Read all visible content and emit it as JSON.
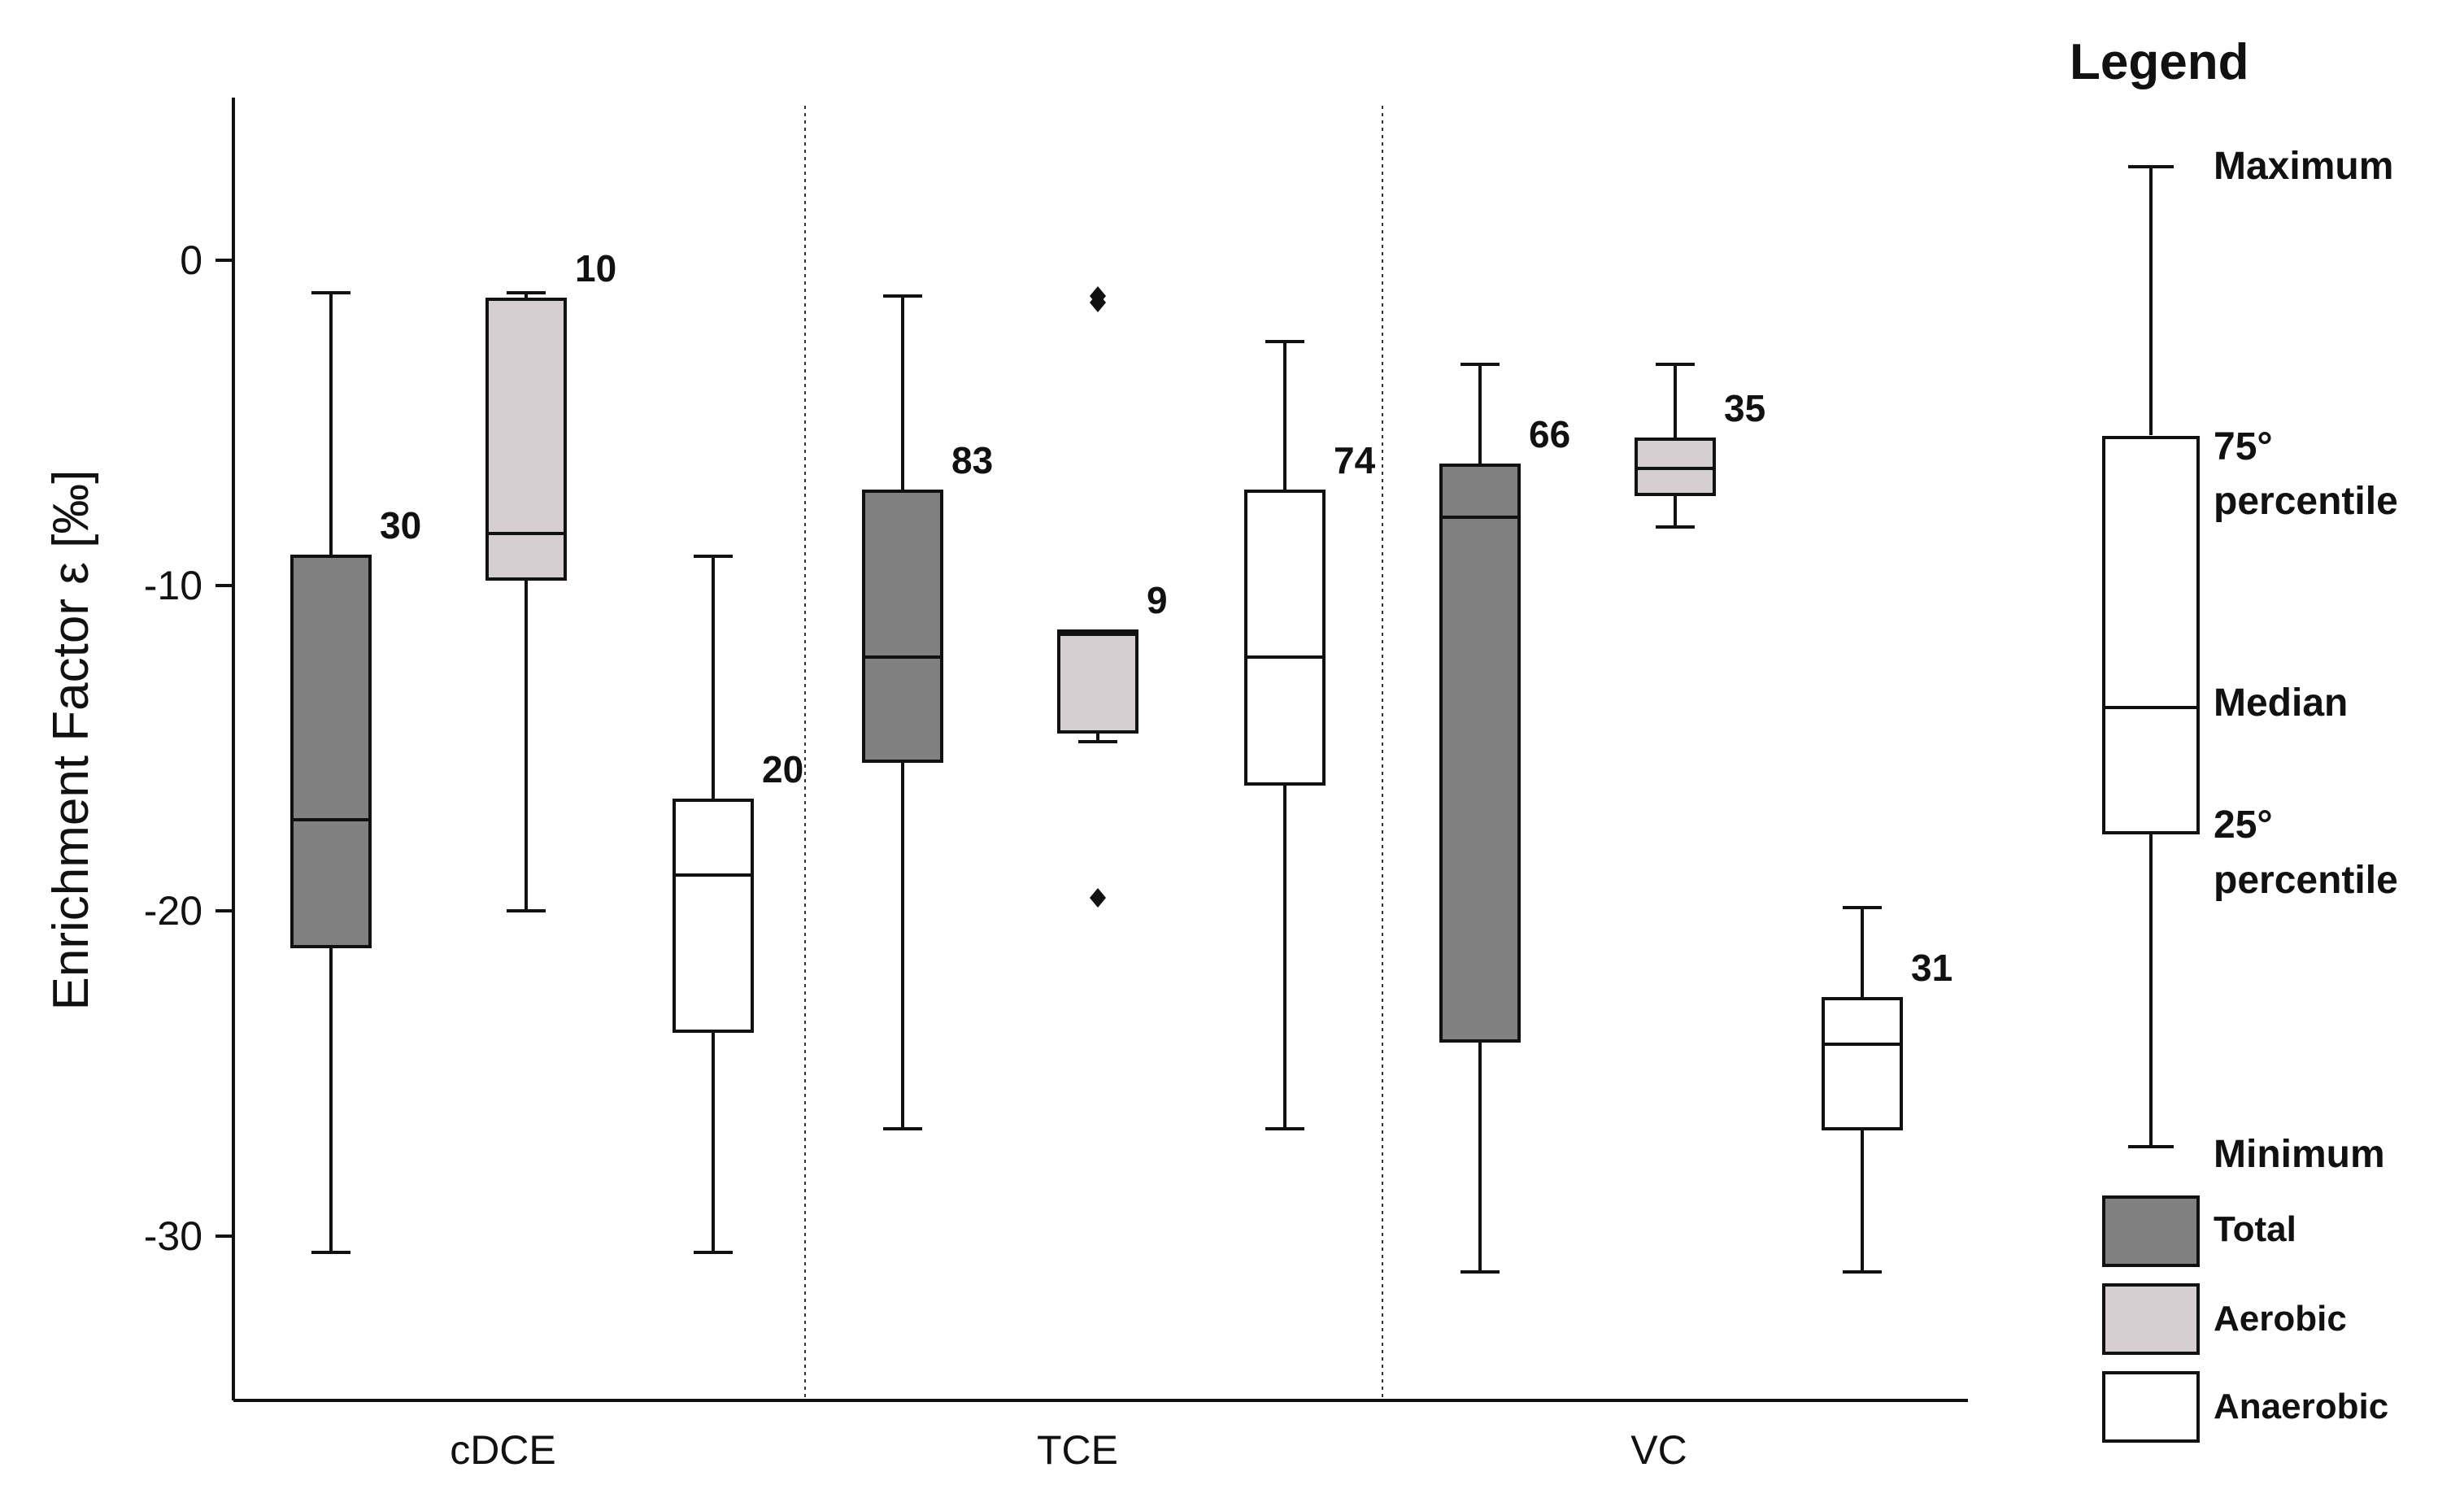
{
  "chart_data": {
    "type": "boxplot",
    "ylabel": "Enrichment Factor ε [‰]",
    "ylim": [
      -35,
      5
    ],
    "yticks": [
      0,
      -10,
      -20,
      -30
    ],
    "ytick_labels": [
      "0",
      "-10",
      "-20",
      "-30"
    ],
    "categories": [
      "cDCE",
      "TCE",
      "VC"
    ],
    "series_colors": {
      "Total": "#808080",
      "Aerobic": "#d6cfd1",
      "Anaerobic": "#ffffff"
    },
    "boxes": [
      {
        "category": "cDCE",
        "series": "Total",
        "min": -30.5,
        "q1": -21.1,
        "median": -17.2,
        "q3": -9.1,
        "max": -1.0,
        "n": "30",
        "outliers": []
      },
      {
        "category": "cDCE",
        "series": "Aerobic",
        "min": -20.0,
        "q1": -9.8,
        "median": -8.4,
        "q3": -1.2,
        "max": -1.0,
        "n": "10",
        "outliers": []
      },
      {
        "category": "cDCE",
        "series": "Anaerobic",
        "min": -30.5,
        "q1": -23.7,
        "median": -18.9,
        "q3": -16.6,
        "max": -9.1,
        "n": "20",
        "outliers": []
      },
      {
        "category": "TCE",
        "series": "Total",
        "min": -26.7,
        "q1": -15.4,
        "median": -12.2,
        "q3": -7.1,
        "max": -1.1,
        "n": "83",
        "outliers": []
      },
      {
        "category": "TCE",
        "series": "Aerobic",
        "min": -14.8,
        "q1": -14.5,
        "median": -11.5,
        "q3": -11.4,
        "max": -11.4,
        "n": "9",
        "outliers": [
          -1.1,
          -1.3,
          -19.6
        ]
      },
      {
        "category": "TCE",
        "series": "Anaerobic",
        "min": -26.7,
        "q1": -16.1,
        "median": -12.2,
        "q3": -7.1,
        "max": -2.5,
        "n": "74",
        "outliers": []
      },
      {
        "category": "VC",
        "series": "Total",
        "min": -31.1,
        "q1": -24.0,
        "median": -7.9,
        "q3": -6.3,
        "max": -3.2,
        "n": "66",
        "outliers": []
      },
      {
        "category": "VC",
        "series": "Aerobic",
        "min": -8.2,
        "q1": -7.2,
        "median": -6.4,
        "q3": -5.5,
        "max": -3.2,
        "n": "35",
        "outliers": []
      },
      {
        "category": "VC",
        "series": "Anaerobic",
        "min": -31.1,
        "q1": -26.7,
        "median": -24.1,
        "q3": -22.7,
        "max": -19.9,
        "n": "31",
        "outliers": []
      }
    ],
    "legend": {
      "title": "Legend",
      "labels": {
        "maximum": "Maximum",
        "q3_line1": "75°",
        "q3_line2": "percentile",
        "median": "Median",
        "q1_line1": "25°",
        "q1_line2": "percentile",
        "minimum": "Minimum"
      },
      "categories": [
        "Total",
        "Aerobic",
        "Anaerobic"
      ]
    }
  }
}
